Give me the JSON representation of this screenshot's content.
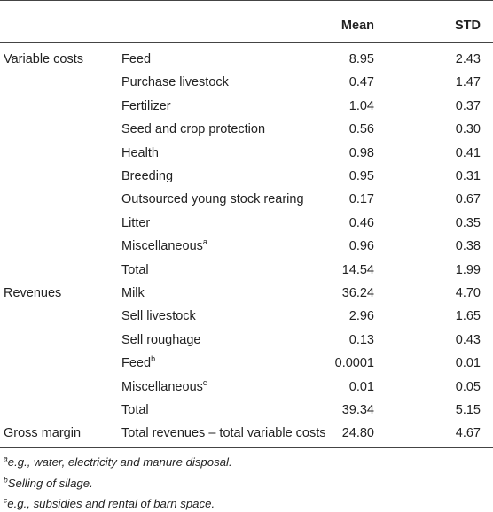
{
  "table": {
    "headers": {
      "mean": "Mean",
      "std": "STD"
    },
    "rows": [
      {
        "category": "Variable costs",
        "item": "Feed",
        "sup": "",
        "mean": "8.95",
        "std": "2.43"
      },
      {
        "category": "",
        "item": "Purchase livestock",
        "sup": "",
        "mean": "0.47",
        "std": "1.47"
      },
      {
        "category": "",
        "item": "Fertilizer",
        "sup": "",
        "mean": "1.04",
        "std": "0.37"
      },
      {
        "category": "",
        "item": "Seed and crop protection",
        "sup": "",
        "mean": "0.56",
        "std": "0.30"
      },
      {
        "category": "",
        "item": "Health",
        "sup": "",
        "mean": "0.98",
        "std": "0.41"
      },
      {
        "category": "",
        "item": "Breeding",
        "sup": "",
        "mean": "0.95",
        "std": "0.31"
      },
      {
        "category": "",
        "item": "Outsourced young stock rearing",
        "sup": "",
        "mean": "0.17",
        "std": "0.67"
      },
      {
        "category": "",
        "item": "Litter",
        "sup": "",
        "mean": "0.46",
        "std": "0.35"
      },
      {
        "category": "",
        "item": "Miscellaneous",
        "sup": "a",
        "mean": "0.96",
        "std": "0.38"
      },
      {
        "category": "",
        "item": "Total",
        "sup": "",
        "mean": "14.54",
        "std": "1.99"
      },
      {
        "category": "Revenues",
        "item": "Milk",
        "sup": "",
        "mean": "36.24",
        "std": "4.70"
      },
      {
        "category": "",
        "item": "Sell livestock",
        "sup": "",
        "mean": "2.96",
        "std": "1.65"
      },
      {
        "category": "",
        "item": "Sell roughage",
        "sup": "",
        "mean": "0.13",
        "std": "0.43"
      },
      {
        "category": "",
        "item": "Feed",
        "sup": "b",
        "mean": "0.0001",
        "std": "0.01"
      },
      {
        "category": "",
        "item": "Miscellaneous",
        "sup": "c",
        "mean": "0.01",
        "std": "0.05"
      },
      {
        "category": "",
        "item": "Total",
        "sup": "",
        "mean": "39.34",
        "std": "5.15"
      },
      {
        "category": "Gross margin",
        "item": "Total revenues – total variable costs",
        "sup": "",
        "mean": "24.80",
        "std": "4.67"
      }
    ]
  },
  "footnotes": [
    {
      "mark": "a",
      "text": "e.g., water, electricity and manure disposal."
    },
    {
      "mark": "b",
      "text": "Selling of silage."
    },
    {
      "mark": "c",
      "text": "e.g., subsidies and rental of barn space."
    }
  ]
}
